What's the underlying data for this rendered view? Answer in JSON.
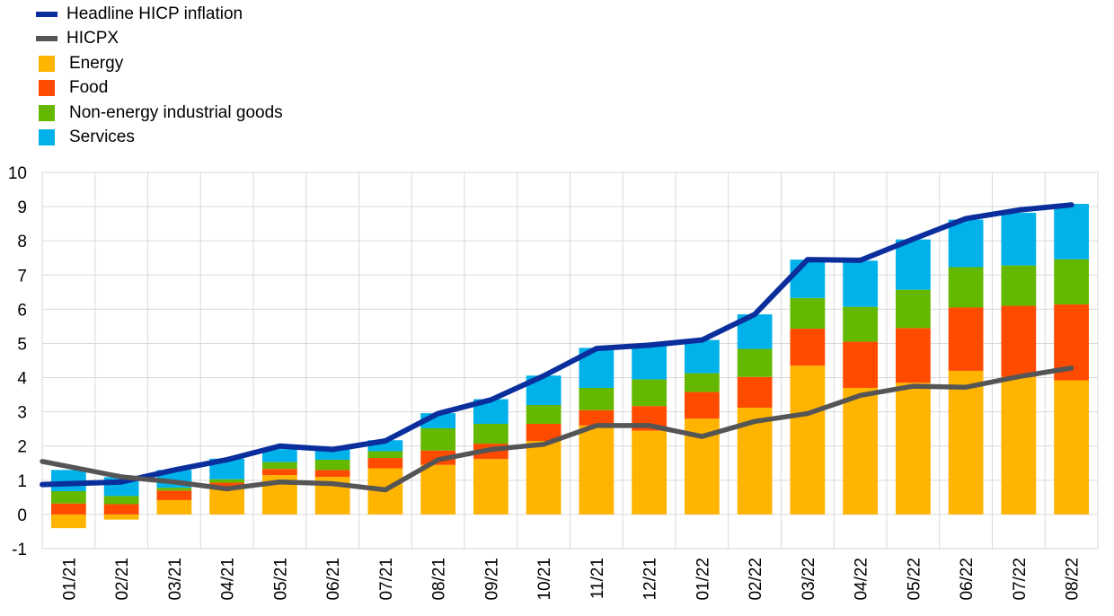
{
  "colors": {
    "headline": "#0a2f9c",
    "hicpx": "#555555",
    "energy": "#ffb400",
    "food": "#ff4b00",
    "neig": "#65b800",
    "services": "#00b1ea",
    "grid": "#d9d9d9"
  },
  "legend": [
    {
      "key": "headline",
      "label": "Headline HICP inflation",
      "kind": "line"
    },
    {
      "key": "hicpx",
      "label": "HICPX",
      "kind": "line"
    },
    {
      "key": "energy",
      "label": "Energy",
      "kind": "box"
    },
    {
      "key": "food",
      "label": "Food",
      "kind": "box"
    },
    {
      "key": "neig",
      "label": "Non-energy industrial goods",
      "kind": "box"
    },
    {
      "key": "services",
      "label": "Services",
      "kind": "box"
    }
  ],
  "chart_data": {
    "type": "bar",
    "stacked": true,
    "categories": [
      "01/21",
      "02/21",
      "03/21",
      "04/21",
      "05/21",
      "06/21",
      "07/21",
      "08/21",
      "09/21",
      "10/21",
      "11/21",
      "12/21",
      "01/22",
      "02/22",
      "03/22",
      "04/22",
      "05/22",
      "06/22",
      "07/22",
      "08/22"
    ],
    "ylim": [
      -1,
      10
    ],
    "yticks": [
      -1,
      0,
      1,
      2,
      3,
      4,
      5,
      6,
      7,
      8,
      9,
      10
    ],
    "grid": true,
    "legend_position": "top-left",
    "series": [
      {
        "name": "Energy",
        "key": "energy",
        "values": [
          -0.4,
          -0.15,
          0.42,
          0.75,
          1.15,
          1.1,
          1.35,
          1.45,
          1.62,
          2.15,
          2.6,
          2.45,
          2.8,
          3.12,
          4.35,
          3.7,
          3.85,
          4.2,
          4.02,
          3.92
        ]
      },
      {
        "name": "Food",
        "key": "food",
        "values": [
          0.32,
          0.3,
          0.28,
          0.18,
          0.18,
          0.2,
          0.3,
          0.42,
          0.45,
          0.5,
          0.45,
          0.72,
          0.78,
          0.9,
          1.08,
          1.35,
          1.6,
          1.85,
          2.08,
          2.22
        ]
      },
      {
        "name": "Non-energy industrial goods",
        "key": "neig",
        "values": [
          0.36,
          0.24,
          0.08,
          0.1,
          0.2,
          0.3,
          0.2,
          0.65,
          0.58,
          0.55,
          0.65,
          0.78,
          0.55,
          0.82,
          0.9,
          1.02,
          1.12,
          1.18,
          1.18,
          1.32
        ]
      },
      {
        "name": "Services",
        "key": "services",
        "values": [
          0.62,
          0.55,
          0.52,
          0.6,
          0.38,
          0.3,
          0.32,
          0.44,
          0.72,
          0.86,
          1.17,
          0.99,
          0.97,
          1.01,
          1.12,
          1.35,
          1.47,
          1.39,
          1.54,
          1.62
        ]
      },
      {
        "name": "Headline HICP inflation",
        "key": "headline",
        "kind": "line",
        "values": [
          0.9,
          0.95,
          1.3,
          1.6,
          2.0,
          1.9,
          2.15,
          2.95,
          3.35,
          4.05,
          4.85,
          4.95,
          5.1,
          5.85,
          7.45,
          7.43,
          8.05,
          8.65,
          8.9,
          9.05
        ]
      },
      {
        "name": "HICPX",
        "key": "hicpx",
        "kind": "line",
        "values": [
          1.4,
          1.1,
          0.95,
          0.75,
          0.95,
          0.9,
          0.72,
          1.6,
          1.9,
          2.05,
          2.6,
          2.6,
          2.28,
          2.72,
          2.95,
          3.48,
          3.75,
          3.72,
          4.03,
          4.28
        ]
      }
    ]
  }
}
